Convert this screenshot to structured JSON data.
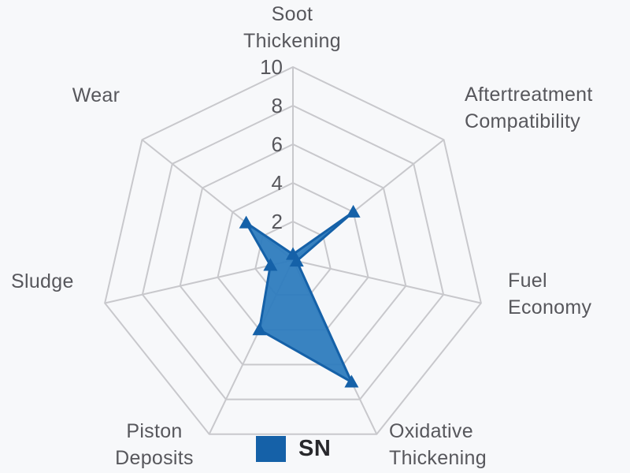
{
  "chart_data": {
    "type": "radar",
    "categories": [
      "Soot Thickening",
      "Aftertreatment Compatibility",
      "Fuel Economy",
      "Oxidative Thickening",
      "Piston Deposits",
      "Sludge",
      "Wear"
    ],
    "series": [
      {
        "name": "SN",
        "values": [
          0.3,
          4,
          0.2,
          7,
          4,
          1.2,
          3.1
        ],
        "fill_color": "#2e7cbe",
        "stroke_color": "#1561a8",
        "marker": "triangle-up"
      }
    ],
    "ticks": [
      2,
      4,
      6,
      8,
      10
    ],
    "axis_range": [
      0,
      10
    ],
    "grid": "polygon-rings",
    "grid_color": "#c8c8cc",
    "tick_label_color": "#57575c",
    "axis_label_color": "#57575c",
    "legend_position": "bottom-center",
    "title": ""
  },
  "legend": {
    "sn_label": "SN"
  }
}
